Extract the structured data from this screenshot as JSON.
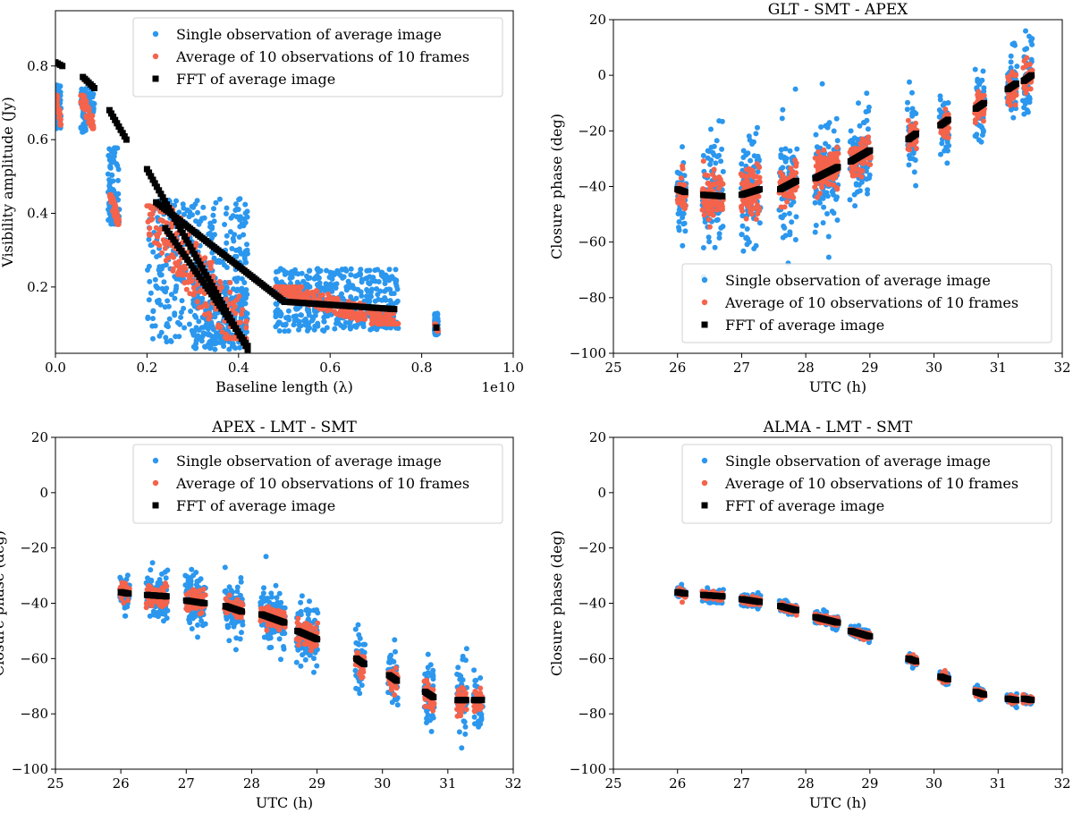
{
  "colors": {
    "single": "#2b97ee",
    "average": "#f4634b",
    "fft": "#000000",
    "axes": "#000000",
    "background": "#ffffff"
  },
  "chart_data": [
    {
      "type": "scatter",
      "title": "",
      "xlabel": "Baseline length (λ)",
      "ylabel": "Visibility amplitude (Jy)",
      "x_offset_label": "1e10",
      "xlim": [
        0.0,
        1.0
      ],
      "ylim": [
        0.02,
        0.95
      ],
      "xticks": [
        0.0,
        0.2,
        0.4,
        0.6,
        0.8,
        1.0
      ],
      "xtick_labels": [
        "0.0",
        "0.2",
        "0.4",
        "0.6",
        "0.8",
        "1.0"
      ],
      "yticks": [
        0.2,
        0.4,
        0.6,
        0.8
      ],
      "ytick_labels": [
        "0.2",
        "0.4",
        "0.6",
        "0.8"
      ],
      "legend": {
        "placement": "top-right",
        "entries": [
          "Single observation of average image",
          "Average of 10 observations of 10 frames",
          "FFT of average image"
        ]
      },
      "series": [
        {
          "name": "Single observation of average image",
          "marker": "circle",
          "color_key": "single",
          "clusters": [
            {
              "x": [
                0.002,
                0.012
              ],
              "y": [
                0.62,
                0.75
              ]
            },
            {
              "x": [
                0.055,
                0.085
              ],
              "y": [
                0.62,
                0.74
              ]
            },
            {
              "x": [
                0.115,
                0.14
              ],
              "y": [
                0.37,
                0.58
              ]
            },
            {
              "x": [
                0.2,
                0.42
              ],
              "y": [
                0.05,
                0.44
              ]
            },
            {
              "x": [
                0.3,
                0.42
              ],
              "y": [
                0.03,
                0.2
              ]
            },
            {
              "x": [
                0.48,
                0.75
              ],
              "y": [
                0.08,
                0.25
              ]
            },
            {
              "x": [
                0.828,
                0.836
              ],
              "y": [
                0.07,
                0.13
              ]
            }
          ]
        },
        {
          "name": "Average of 10 observations of 10 frames",
          "marker": "circle",
          "color_key": "average",
          "clusters": [
            {
              "x": [
                0.002,
                0.012
              ],
              "y": [
                0.64,
                0.72
              ]
            },
            {
              "x": [
                0.055,
                0.085
              ],
              "y": [
                0.63,
                0.72
              ]
            },
            {
              "x": [
                0.118,
                0.14
              ],
              "y": [
                0.37,
                0.45
              ]
            },
            {
              "x": [
                0.2,
                0.42
              ],
              "y": [
                0.06,
                0.42
              ]
            },
            {
              "x": [
                0.48,
                0.75
              ],
              "y": [
                0.1,
                0.2
              ]
            },
            {
              "x": [
                0.828,
                0.836
              ],
              "y": [
                0.08,
                0.1
              ]
            }
          ]
        },
        {
          "name": "FFT of average image",
          "marker": "square",
          "color_key": "fft",
          "segments": [
            {
              "x": [
                0.0,
                0.015
              ],
              "y": [
                0.81,
                0.8
              ]
            },
            {
              "x": [
                0.06,
                0.085
              ],
              "y": [
                0.77,
                0.74
              ]
            },
            {
              "x": [
                0.118,
                0.155
              ],
              "y": [
                0.68,
                0.6
              ]
            },
            {
              "x": [
                0.2,
                0.42
              ],
              "y": [
                0.52,
                0.03
              ]
            },
            {
              "x": [
                0.22,
                0.5
              ],
              "y": [
                0.43,
                0.16
              ]
            },
            {
              "x": [
                0.24,
                0.42
              ],
              "y": [
                0.36,
                0.04
              ]
            },
            {
              "x": [
                0.5,
                0.74
              ],
              "y": [
                0.16,
                0.14
              ]
            },
            {
              "x": [
                0.832,
                0.832
              ],
              "y": [
                0.09,
                0.09
              ]
            }
          ]
        }
      ]
    },
    {
      "type": "scatter",
      "title": "GLT - SMT - APEX",
      "xlabel": "UTC (h)",
      "ylabel": "Closure phase (deg)",
      "xlim": [
        25,
        32
      ],
      "ylim": [
        -100,
        20
      ],
      "xticks": [
        25,
        26,
        27,
        28,
        29,
        30,
        31,
        32
      ],
      "xtick_labels": [
        "25",
        "26",
        "27",
        "28",
        "29",
        "30",
        "31",
        "32"
      ],
      "yticks": [
        -100,
        -80,
        -60,
        -40,
        -20,
        0,
        20
      ],
      "ytick_labels": [
        "−100",
        "−80",
        "−60",
        "−40",
        "−20",
        "0",
        "20"
      ],
      "legend": {
        "placement": "bottom-right",
        "entries": [
          "Single observation of average image",
          "Average of 10 observations of 10 frames",
          "FFT of average image"
        ]
      },
      "scans": [
        {
          "t0": 26.0,
          "t1": 26.12,
          "y0": -41,
          "y1": -42,
          "spread_single": 20,
          "spread_avg": 8
        },
        {
          "t0": 26.4,
          "t1": 26.7,
          "y0": -43,
          "y1": -43.5,
          "spread_single": 24,
          "spread_avg": 9
        },
        {
          "t0": 27.0,
          "t1": 27.28,
          "y0": -43,
          "y1": -41,
          "spread_single": 24,
          "spread_avg": 9
        },
        {
          "t0": 27.6,
          "t1": 27.85,
          "y0": -41,
          "y1": -38,
          "spread_single": 22,
          "spread_avg": 8
        },
        {
          "t0": 28.15,
          "t1": 28.5,
          "y0": -37,
          "y1": -33,
          "spread_single": 20,
          "spread_avg": 8
        },
        {
          "t0": 28.7,
          "t1": 29.0,
          "y0": -31,
          "y1": -27,
          "spread_single": 18,
          "spread_avg": 7
        },
        {
          "t0": 29.6,
          "t1": 29.72,
          "y0": -23,
          "y1": -21,
          "spread_single": 14,
          "spread_avg": 6
        },
        {
          "t0": 30.1,
          "t1": 30.22,
          "y0": -18,
          "y1": -16,
          "spread_single": 14,
          "spread_avg": 6
        },
        {
          "t0": 30.65,
          "t1": 30.78,
          "y0": -12,
          "y1": -10,
          "spread_single": 15,
          "spread_avg": 6
        },
        {
          "t0": 31.15,
          "t1": 31.28,
          "y0": -5,
          "y1": -3,
          "spread_single": 14,
          "spread_avg": 6
        },
        {
          "t0": 31.4,
          "t1": 31.52,
          "y0": -2,
          "y1": 0,
          "spread_single": 14,
          "spread_avg": 6
        }
      ]
    },
    {
      "type": "scatter",
      "title": "APEX - LMT - SMT",
      "xlabel": "UTC (h)",
      "ylabel": "Closure phase (deg)",
      "xlim": [
        25,
        32
      ],
      "ylim": [
        -100,
        20
      ],
      "xticks": [
        25,
        26,
        27,
        28,
        29,
        30,
        31,
        32
      ],
      "xtick_labels": [
        "25",
        "26",
        "27",
        "28",
        "29",
        "30",
        "31",
        "32"
      ],
      "yticks": [
        -100,
        -80,
        -60,
        -40,
        -20,
        0,
        20
      ],
      "ytick_labels": [
        "−100",
        "−80",
        "−60",
        "−40",
        "−20",
        "0",
        "20"
      ],
      "legend": {
        "placement": "top-right",
        "entries": [
          "Single observation of average image",
          "Average of 10 observations of 10 frames",
          "FFT of average image"
        ]
      },
      "scans": [
        {
          "t0": 26.0,
          "t1": 26.12,
          "y0": -36,
          "y1": -36.5,
          "spread_single": 8,
          "spread_avg": 4
        },
        {
          "t0": 26.4,
          "t1": 26.7,
          "y0": -37,
          "y1": -37.5,
          "spread_single": 9,
          "spread_avg": 4
        },
        {
          "t0": 27.0,
          "t1": 27.28,
          "y0": -39,
          "y1": -40,
          "spread_single": 10,
          "spread_avg": 4
        },
        {
          "t0": 27.6,
          "t1": 27.85,
          "y0": -41,
          "y1": -43,
          "spread_single": 11,
          "spread_avg": 4
        },
        {
          "t0": 28.15,
          "t1": 28.5,
          "y0": -44,
          "y1": -47,
          "spread_single": 11,
          "spread_avg": 4
        },
        {
          "t0": 28.7,
          "t1": 29.0,
          "y0": -50,
          "y1": -53,
          "spread_single": 12,
          "spread_avg": 5
        },
        {
          "t0": 29.6,
          "t1": 29.72,
          "y0": -60,
          "y1": -62,
          "spread_single": 13,
          "spread_avg": 5
        },
        {
          "t0": 30.1,
          "t1": 30.22,
          "y0": -66,
          "y1": -68,
          "spread_single": 14,
          "spread_avg": 5
        },
        {
          "t0": 30.65,
          "t1": 30.78,
          "y0": -72,
          "y1": -74,
          "spread_single": 13,
          "spread_avg": 5
        },
        {
          "t0": 31.15,
          "t1": 31.28,
          "y0": -75,
          "y1": -75,
          "spread_single": 14,
          "spread_avg": 5
        },
        {
          "t0": 31.4,
          "t1": 31.52,
          "y0": -75,
          "y1": -75,
          "spread_single": 14,
          "spread_avg": 5
        }
      ]
    },
    {
      "type": "scatter",
      "title": "ALMA - LMT - SMT",
      "xlabel": "UTC (h)",
      "ylabel": "Closure phase (deg)",
      "xlim": [
        25,
        32
      ],
      "ylim": [
        -100,
        20
      ],
      "xticks": [
        25,
        26,
        27,
        28,
        29,
        30,
        31,
        32
      ],
      "xtick_labels": [
        "25",
        "26",
        "27",
        "28",
        "29",
        "30",
        "31",
        "32"
      ],
      "yticks": [
        -100,
        -80,
        -60,
        -40,
        -20,
        0,
        20
      ],
      "ytick_labels": [
        "−100",
        "−80",
        "−60",
        "−40",
        "−20",
        "0",
        "20"
      ],
      "legend": {
        "placement": "top-right",
        "entries": [
          "Single observation of average image",
          "Average of 10 observations of 10 frames",
          "FFT of average image"
        ]
      },
      "scans": [
        {
          "t0": 26.0,
          "t1": 26.12,
          "y0": -36,
          "y1": -36.5,
          "spread_single": 2.5,
          "spread_avg": 1.5
        },
        {
          "t0": 26.4,
          "t1": 26.7,
          "y0": -37,
          "y1": -37.5,
          "spread_single": 2.5,
          "spread_avg": 1.5
        },
        {
          "t0": 27.0,
          "t1": 27.28,
          "y0": -38.5,
          "y1": -39.5,
          "spread_single": 2.5,
          "spread_avg": 1.5
        },
        {
          "t0": 27.6,
          "t1": 27.85,
          "y0": -41,
          "y1": -42.5,
          "spread_single": 2.5,
          "spread_avg": 1.5
        },
        {
          "t0": 28.15,
          "t1": 28.5,
          "y0": -45,
          "y1": -47,
          "spread_single": 2.5,
          "spread_avg": 1.5
        },
        {
          "t0": 28.7,
          "t1": 29.0,
          "y0": -50,
          "y1": -52,
          "spread_single": 2.5,
          "spread_avg": 1.5
        },
        {
          "t0": 29.6,
          "t1": 29.72,
          "y0": -60,
          "y1": -61,
          "spread_single": 2.5,
          "spread_avg": 1.5
        },
        {
          "t0": 30.1,
          "t1": 30.22,
          "y0": -66.5,
          "y1": -67.5,
          "spread_single": 2,
          "spread_avg": 1.5
        },
        {
          "t0": 30.65,
          "t1": 30.78,
          "y0": -72,
          "y1": -73,
          "spread_single": 2,
          "spread_avg": 1.5
        },
        {
          "t0": 31.15,
          "t1": 31.28,
          "y0": -74.5,
          "y1": -75,
          "spread_single": 2,
          "spread_avg": 1.5
        },
        {
          "t0": 31.4,
          "t1": 31.52,
          "y0": -74.5,
          "y1": -75,
          "spread_single": 2,
          "spread_avg": 1.5
        }
      ]
    }
  ]
}
